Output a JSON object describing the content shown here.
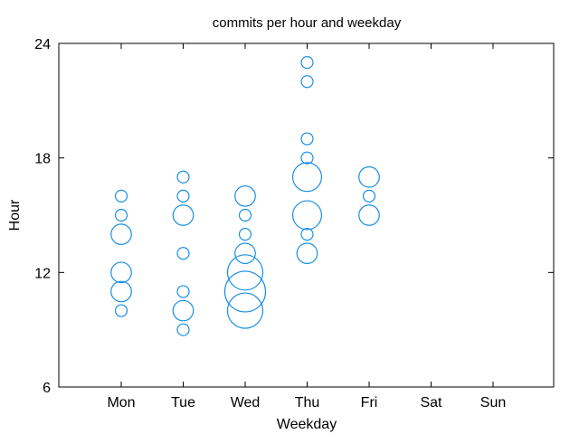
{
  "chart_data": {
    "type": "scatter",
    "title": "commits per hour and weekday",
    "xlabel": "Weekday",
    "ylabel": "Hour",
    "categories": [
      "Mon",
      "Tue",
      "Wed",
      "Thu",
      "Fri",
      "Sat",
      "Sun"
    ],
    "ylim": [
      6,
      24
    ],
    "yticks": [
      6,
      12,
      18,
      24
    ],
    "grid": false,
    "bubble_color": "#1a8fe3",
    "points": [
      {
        "day": "Mon",
        "hour": 10,
        "size": 1
      },
      {
        "day": "Mon",
        "hour": 11,
        "size": 3
      },
      {
        "day": "Mon",
        "hour": 12,
        "size": 3
      },
      {
        "day": "Mon",
        "hour": 14,
        "size": 3
      },
      {
        "day": "Mon",
        "hour": 15,
        "size": 1
      },
      {
        "day": "Mon",
        "hour": 16,
        "size": 1
      },
      {
        "day": "Tue",
        "hour": 9,
        "size": 1
      },
      {
        "day": "Tue",
        "hour": 10,
        "size": 3
      },
      {
        "day": "Tue",
        "hour": 11,
        "size": 1
      },
      {
        "day": "Tue",
        "hour": 13,
        "size": 1
      },
      {
        "day": "Tue",
        "hour": 15,
        "size": 3
      },
      {
        "day": "Tue",
        "hour": 16,
        "size": 1
      },
      {
        "day": "Tue",
        "hour": 17,
        "size": 1
      },
      {
        "day": "Wed",
        "hour": 10,
        "size": 9
      },
      {
        "day": "Wed",
        "hour": 11,
        "size": 12
      },
      {
        "day": "Wed",
        "hour": 12,
        "size": 9
      },
      {
        "day": "Wed",
        "hour": 13,
        "size": 3
      },
      {
        "day": "Wed",
        "hour": 14,
        "size": 1
      },
      {
        "day": "Wed",
        "hour": 15,
        "size": 1
      },
      {
        "day": "Wed",
        "hour": 16,
        "size": 3
      },
      {
        "day": "Thu",
        "hour": 13,
        "size": 3
      },
      {
        "day": "Thu",
        "hour": 14,
        "size": 1
      },
      {
        "day": "Thu",
        "hour": 15,
        "size": 6
      },
      {
        "day": "Thu",
        "hour": 17,
        "size": 6
      },
      {
        "day": "Thu",
        "hour": 18,
        "size": 1
      },
      {
        "day": "Thu",
        "hour": 19,
        "size": 1
      },
      {
        "day": "Thu",
        "hour": 22,
        "size": 1
      },
      {
        "day": "Thu",
        "hour": 23,
        "size": 1
      },
      {
        "day": "Fri",
        "hour": 15,
        "size": 3
      },
      {
        "day": "Fri",
        "hour": 16,
        "size": 1
      },
      {
        "day": "Fri",
        "hour": 17,
        "size": 3
      }
    ]
  }
}
